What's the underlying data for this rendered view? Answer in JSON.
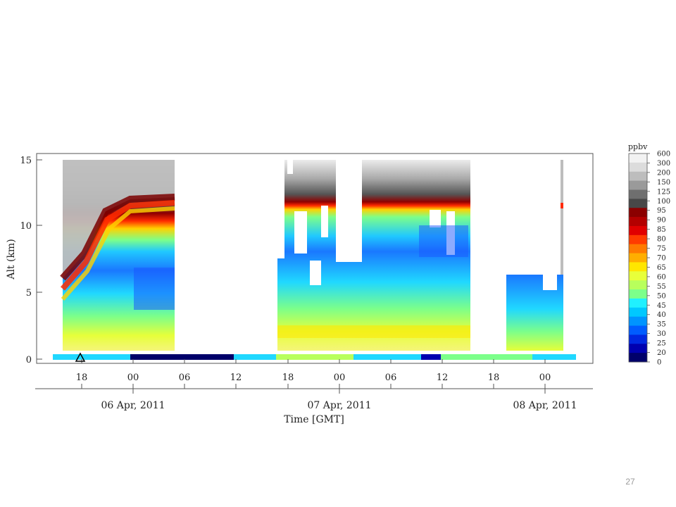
{
  "slide": {
    "page_number": "27"
  },
  "chart_data": {
    "type": "heatmap",
    "title": "",
    "xlabel": "Time [GMT]",
    "ylabel": "Alt (km)",
    "ylim": [
      0,
      15
    ],
    "y_ticks": [
      "0",
      "5",
      "10",
      "15"
    ],
    "x_tick_labels": [
      "18",
      "00",
      "06",
      "12",
      "18",
      "00",
      "06",
      "12",
      "18",
      "00"
    ],
    "date_labels": [
      "06 Apr, 2011",
      "07 Apr, 2011",
      "08 Apr, 2011"
    ],
    "colorbar": {
      "unit": "ppbv",
      "levels": [
        "600",
        "300",
        "200",
        "150",
        "125",
        "100",
        "95",
        "90",
        "85",
        "80",
        "75",
        "70",
        "65",
        "60",
        "55",
        "50",
        "45",
        "40",
        "35",
        "30",
        "25",
        "20",
        "0"
      ],
      "colors": [
        "#f2f2f2",
        "#dcdcdc",
        "#bdbdbd",
        "#9a9a9a",
        "#6f6f6f",
        "#484848",
        "#8b0000",
        "#b30000",
        "#e00000",
        "#ff3c00",
        "#ff7a00",
        "#ffae00",
        "#ffe600",
        "#e8ff3a",
        "#b8ff5c",
        "#7cff8a",
        "#20f0ff",
        "#00c8ff",
        "#0094ff",
        "#005cff",
        "#0028e0",
        "#0000b0",
        "#00006a"
      ]
    },
    "annotations": [
      "triangle-marker"
    ]
  }
}
